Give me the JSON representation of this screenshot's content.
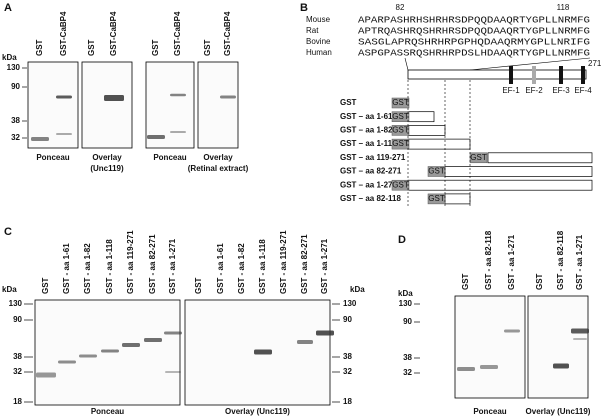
{
  "panel_a": {
    "label": "A",
    "units": "kDa",
    "markers": [
      "130",
      "90",
      "38",
      "32"
    ],
    "blots": [
      {
        "lanes": [
          "GST",
          "GST-CaBP4"
        ],
        "caption": [
          "Ponceau"
        ]
      },
      {
        "lanes": [
          "GST",
          "GST-CaBP4"
        ],
        "caption": [
          "Overlay",
          "(Unc119)"
        ]
      },
      {
        "lanes": [
          "GST",
          "GST-CaBP4"
        ],
        "caption": [
          "Ponceau"
        ]
      },
      {
        "lanes": [
          "GST",
          "GST-CaBP4"
        ],
        "caption": [
          "Overlay",
          "(Retinal extract)"
        ]
      }
    ]
  },
  "panel_b": {
    "label": "B",
    "positions": [
      "82",
      "118",
      "271"
    ],
    "alignment": [
      {
        "species": "Mouse",
        "sequence": "APARPASHRHSHRHRSDPQQDAAQRTYGPLLNRMFG"
      },
      {
        "species": "Rat",
        "sequence": "APTRQASHRQSHRHRSDPQQDAAQRTYGPLLNRMFG"
      },
      {
        "species": "Bovine",
        "sequence": "SASGLAPRQSHRHRPGPHQDAAQRMYGPLLNRIFG"
      },
      {
        "species": "Human",
        "sequence": "ASPGPASSRQSHRHRPDSLHDAAQRTYGPLLNRMFG"
      }
    ],
    "domains": [
      "EF-1",
      "EF-2",
      "EF-3",
      "EF-4"
    ],
    "constructs": [
      {
        "label": "GST",
        "tag": "GST"
      },
      {
        "label": "GST – aa 1-61",
        "tag": "GST"
      },
      {
        "label": "GST – aa 1-82",
        "tag": "GST"
      },
      {
        "label": "GST – aa 1-118",
        "tag": "GST"
      },
      {
        "label": "GST – aa 119-271",
        "tag": "GST"
      },
      {
        "label": "GST – aa 82-271",
        "tag": "GST"
      },
      {
        "label": "GST – aa 1-271",
        "tag": "GST"
      },
      {
        "label": "GST – aa 82-118",
        "tag": "GST"
      }
    ]
  },
  "panel_c": {
    "label": "C",
    "units_left": "kDa",
    "units_right": "kDa",
    "markers_left": [
      "130",
      "90",
      "38",
      "32",
      "18"
    ],
    "markers_right": [
      "130",
      "90",
      "38",
      "32",
      "18"
    ],
    "blots": [
      {
        "lanes": [
          "GST",
          "GST - aa 1-61",
          "GST - aa 1-82",
          "GST - aa 1-118",
          "GST - aa 119-271",
          "GST - aa 82-271",
          "GST - aa 1-271"
        ],
        "caption": [
          "Ponceau"
        ]
      },
      {
        "lanes": [
          "GST",
          "GST - aa 1-61",
          "GST - aa 1-82",
          "GST - aa 1-118",
          "GST - aa 119-271",
          "GST - aa 82-271",
          "GST - aa 1-271"
        ],
        "caption": [
          "Overlay (Unc119)"
        ]
      }
    ]
  },
  "panel_d": {
    "label": "D",
    "units": "kDa",
    "markers": [
      "130",
      "90",
      "38",
      "32"
    ],
    "blots": [
      {
        "lanes": [
          "GST",
          "GST - aa 82-118",
          "GST - aa 1-271"
        ],
        "caption": [
          "Ponceau"
        ]
      },
      {
        "lanes": [
          "GST",
          "GST - aa 82-118",
          "GST - aa 1-271"
        ],
        "caption": [
          "Overlay (Unc119)"
        ]
      }
    ]
  }
}
